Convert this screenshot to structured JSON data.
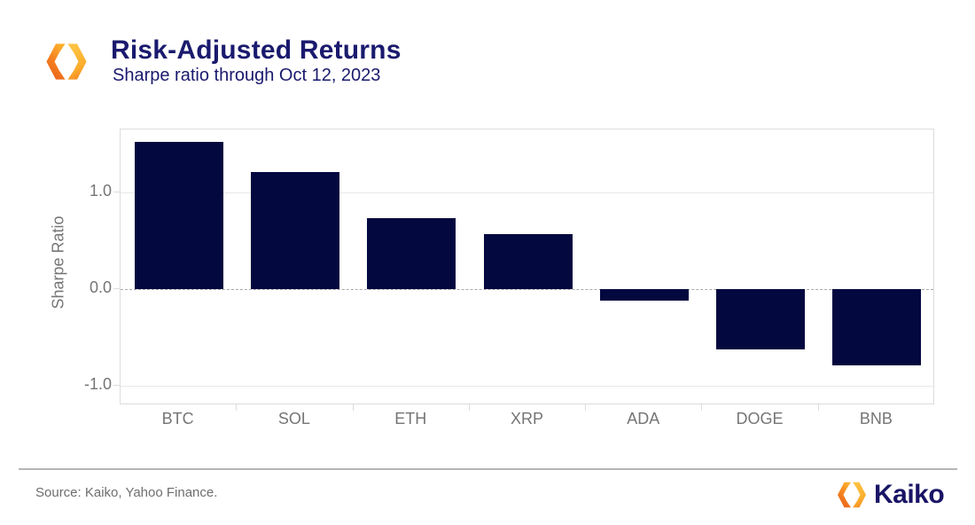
{
  "header": {
    "title": "Risk-Adjusted Returns",
    "subtitle": "Sharpe ratio through Oct 12, 2023"
  },
  "chart_data": {
    "type": "bar",
    "title": "Risk-Adjusted Returns",
    "subtitle": "Sharpe ratio through Oct 12, 2023",
    "categories": [
      "BTC",
      "SOL",
      "ETH",
      "XRP",
      "ADA",
      "DOGE",
      "BNB"
    ],
    "values": [
      1.52,
      1.21,
      0.73,
      0.57,
      -0.12,
      -0.62,
      -0.79
    ],
    "xlabel": "",
    "ylabel": "Sharpe Ratio",
    "ylim": [
      -1.2,
      1.65
    ],
    "yticks": [
      1.0,
      0.0,
      -1.0
    ],
    "ytick_labels": [
      "1.0",
      "0.0",
      "-1.0"
    ],
    "bar_color": "#03083F",
    "grid": "horizontal gridlines at yticks, zero line dashed",
    "legend": "none"
  },
  "footer": {
    "source": "Source: Kaiko, Yahoo Finance.",
    "brand_name": "Kaiko"
  },
  "colors": {
    "title_navy": "#1A1A6E",
    "bar_navy": "#03083F",
    "axis_text_gray": "#757575",
    "grid_gray": "#E8E8E8",
    "border_gray": "#DCDCDC",
    "logo_orange": "#EE6C1F",
    "logo_amber": "#FBAE2C"
  }
}
